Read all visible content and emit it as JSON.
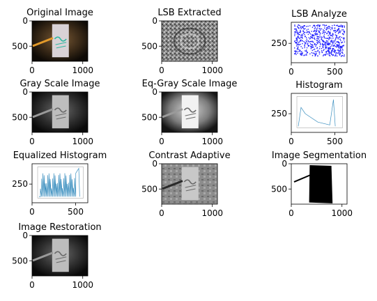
{
  "figure": {
    "panels": [
      {
        "title": "Original Image",
        "xticks": [
          "0",
          "1000"
        ],
        "yticks": [
          "0",
          "500"
        ],
        "image": "photo-pencil-paper-hello-color"
      },
      {
        "title": "LSB Extracted",
        "xticks": [
          "0",
          "1000"
        ],
        "yticks": [
          "0",
          "500"
        ],
        "image": "lsb-noise-pattern-grayscale"
      },
      {
        "title": "LSB Analyze",
        "xticks": [
          "0",
          "500"
        ],
        "yticks": [
          "250"
        ],
        "image": "scatter-plot-blue-points"
      },
      {
        "title": "Gray Scale Image",
        "xticks": [
          "0",
          "1000"
        ],
        "yticks": [
          "0",
          "500"
        ],
        "image": "photo-pencil-paper-hello-gray"
      },
      {
        "title": "Eq-Gray Scale Image",
        "xticks": [
          "0",
          "1000"
        ],
        "yticks": [
          "0",
          "500"
        ],
        "image": "photo-pencil-paper-hello-gray-equalized"
      },
      {
        "title": "Histogram",
        "xticks": [
          "0",
          "500"
        ],
        "yticks": [
          "250"
        ],
        "image": "histogram-plot-thumbnail"
      },
      {
        "title": "Equalized Histogram",
        "xticks": [
          "0",
          "500"
        ],
        "yticks": [
          "250"
        ],
        "image": "equalized-histogram-plot-thumbnail"
      },
      {
        "title": "Contrast Adaptive",
        "xticks": [
          "0",
          "1000"
        ],
        "yticks": [
          "0",
          "500"
        ],
        "image": "photo-clahe-gray"
      },
      {
        "title": "Image Segmentation",
        "xticks": [
          "0",
          "1000"
        ],
        "yticks": [
          "0",
          "500"
        ],
        "image": "segmentation-mask-black"
      },
      {
        "title": "Image Restoration",
        "xticks": [
          "0",
          "1000"
        ],
        "yticks": [
          "0",
          "500"
        ],
        "image": "photo-pencil-paper-hello-gray-restored"
      }
    ]
  },
  "chart_data": {
    "type": "image-grid",
    "panel_count": 10,
    "image_axes": {
      "xlim": [
        0,
        1100
      ],
      "ylim": [
        800,
        0
      ]
    },
    "plot_axes": {
      "xlim": [
        0,
        640
      ],
      "ylim": [
        480,
        0
      ]
    }
  }
}
